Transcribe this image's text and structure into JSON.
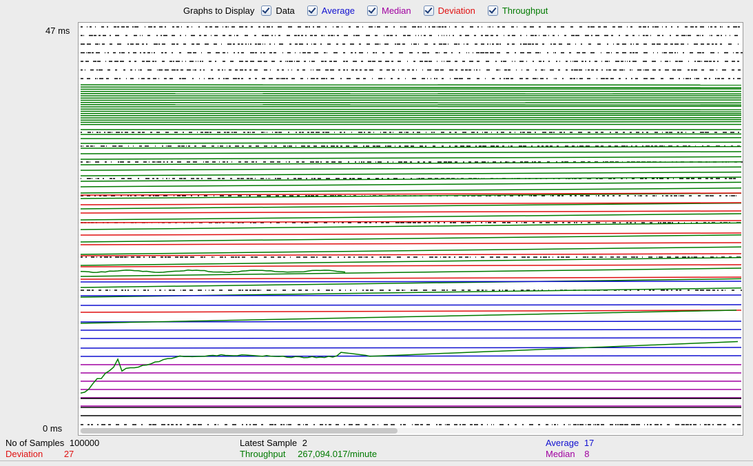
{
  "legend": {
    "title": "Graphs to Display",
    "items": [
      {
        "label": "Data",
        "color": "#000000",
        "checked": true
      },
      {
        "label": "Average",
        "color": "#1010d0",
        "checked": true
      },
      {
        "label": "Median",
        "color": "#a000a0",
        "checked": true
      },
      {
        "label": "Deviation",
        "color": "#e01010",
        "checked": true
      },
      {
        "label": "Throughput",
        "color": "#007a00",
        "checked": true
      }
    ]
  },
  "axis": {
    "y_max_label": "47 ms",
    "y_min_label": "0 ms"
  },
  "chart_data": {
    "type": "line",
    "ylim": [
      0,
      47
    ],
    "yunit": "ms",
    "series": [
      {
        "name": "Data",
        "color": "#000000"
      },
      {
        "name": "Average",
        "color": "#1010d0"
      },
      {
        "name": "Median",
        "color": "#a000a0"
      },
      {
        "name": "Deviation",
        "color": "#e01010"
      },
      {
        "name": "Throughput",
        "color": "#007a00"
      }
    ]
  },
  "stats": {
    "samples_label": "No of Samples",
    "samples_value": "100000",
    "deviation_label": "Deviation",
    "deviation_value": "27",
    "latest_label": "Latest Sample",
    "latest_value": "2",
    "throughput_label": "Throughput",
    "throughput_value": "267,094.017/minute",
    "average_label": "Average",
    "average_value": "17",
    "median_label": "Median",
    "median_value": "8"
  }
}
